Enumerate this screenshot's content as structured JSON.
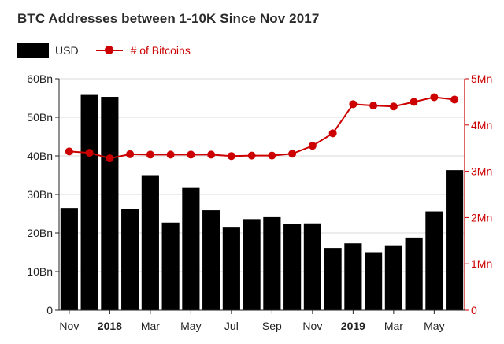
{
  "title": "BTC Addresses between 1-10K Since Nov 2017",
  "legend": {
    "usd_label": "USD",
    "btc_label": "# of Bitcoins"
  },
  "colors": {
    "bars": "#000000",
    "line": "#cc0000",
    "left_axis": "#222222",
    "right_axis": "#cc0000",
    "grid": "#d9d9d9"
  },
  "chart_data": {
    "type": "bar",
    "title": "BTC Addresses between 1-10K Since Nov 2017",
    "xlabel": "",
    "ylabel": "",
    "grid": true,
    "legend_position": "top-left",
    "x_ticks": [
      {
        "label": "Nov",
        "at": 0,
        "bold": false
      },
      {
        "label": "2018",
        "at": 2,
        "bold": true
      },
      {
        "label": "Mar",
        "at": 4,
        "bold": false
      },
      {
        "label": "May",
        "at": 6,
        "bold": false
      },
      {
        "label": "Jul",
        "at": 8,
        "bold": false
      },
      {
        "label": "Sep",
        "at": 10,
        "bold": false
      },
      {
        "label": "Nov",
        "at": 12,
        "bold": false
      },
      {
        "label": "2019",
        "at": 14,
        "bold": true
      },
      {
        "label": "Mar",
        "at": 16,
        "bold": false
      },
      {
        "label": "May",
        "at": 18,
        "bold": false
      }
    ],
    "left_axis": {
      "ylim": [
        0,
        60
      ],
      "ticks": [
        {
          "value": 0,
          "label": "0"
        },
        {
          "value": 10,
          "label": "10Bn"
        },
        {
          "value": 20,
          "label": "20Bn"
        },
        {
          "value": 30,
          "label": "30Bn"
        },
        {
          "value": 40,
          "label": "40Bn"
        },
        {
          "value": 50,
          "label": "50Bn"
        },
        {
          "value": 60,
          "label": "60Bn"
        }
      ]
    },
    "right_axis": {
      "ylim": [
        0,
        5
      ],
      "ticks": [
        {
          "value": 0,
          "label": "0"
        },
        {
          "value": 1,
          "label": "1Mn"
        },
        {
          "value": 2,
          "label": "2Mn"
        },
        {
          "value": 3,
          "label": "3Mn"
        },
        {
          "value": 4,
          "label": "4Mn"
        },
        {
          "value": 5,
          "label": "5Mn"
        }
      ]
    },
    "series": [
      {
        "name": "USD",
        "type": "bar",
        "axis": "left",
        "values": [
          26.5,
          55.8,
          55.3,
          26.3,
          35.0,
          22.7,
          31.7,
          25.9,
          21.4,
          23.6,
          24.1,
          22.3,
          22.5,
          16.1,
          17.3,
          15.0,
          16.8,
          18.8,
          25.6,
          36.3
        ]
      },
      {
        "name": "# of Bitcoins",
        "type": "line",
        "axis": "right",
        "values": [
          3.43,
          3.4,
          3.28,
          3.37,
          3.36,
          3.36,
          3.36,
          3.36,
          3.33,
          3.34,
          3.34,
          3.38,
          3.55,
          3.82,
          4.45,
          4.42,
          4.4,
          4.5,
          4.6,
          4.55
        ]
      }
    ]
  }
}
